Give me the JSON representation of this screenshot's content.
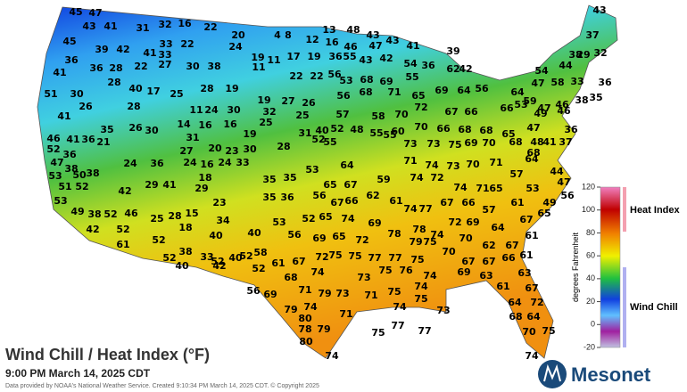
{
  "header": {
    "title": "Wind Chill / Heat Index (°F)",
    "subtitle": "9:00 PM March 14, 2025 CDT",
    "credit": "Data provided by NOAA's National Weather Service. Created 9:10:34 PM March 14, 2025 CDT. © Copyright 2025"
  },
  "legend": {
    "heat_label": "Heat Index",
    "chill_label": "Wind Chill",
    "unit_label": "degrees Fahrenheit",
    "ylim": [
      -20,
      120
    ],
    "yticks": [
      -20,
      0,
      20,
      40,
      60,
      80,
      100,
      120
    ]
  },
  "logo": "Mesonet",
  "stations": {
    "values": [
      45,
      47,
      43,
      41,
      31,
      32,
      16,
      22,
      43,
      20,
      4,
      8,
      13,
      48,
      43,
      37,
      45,
      33,
      22,
      24,
      12,
      16,
      46,
      47,
      43,
      41,
      39,
      36,
      39,
      42,
      41,
      19,
      11,
      17,
      19,
      38,
      44,
      29,
      32,
      36,
      28,
      22,
      33,
      27,
      30,
      38,
      11,
      22,
      22,
      36,
      55,
      43,
      42,
      54,
      36,
      62,
      42,
      54,
      41,
      28,
      40,
      17,
      25,
      28,
      19,
      19,
      27,
      26,
      56,
      53,
      68,
      69,
      55,
      64,
      56,
      64,
      47,
      58,
      33,
      36,
      51,
      30,
      26,
      28,
      11,
      24,
      30,
      56,
      68,
      71,
      65,
      69,
      59,
      47,
      46,
      38,
      35,
      41,
      35,
      26,
      30,
      14,
      16,
      16,
      32,
      25,
      25,
      57,
      58,
      70,
      72,
      67,
      66,
      66,
      53,
      49,
      46,
      46,
      41,
      36,
      19,
      31,
      40,
      52,
      48,
      55,
      60,
      70,
      66,
      68,
      68,
      65,
      47,
      48,
      41,
      37,
      36,
      52,
      47,
      36,
      38,
      21,
      31,
      27,
      20,
      23,
      30,
      28,
      52,
      55,
      55,
      73,
      73,
      75,
      69,
      70,
      68,
      68,
      53,
      50,
      38,
      24,
      36,
      24,
      16,
      24,
      33,
      53,
      64,
      71,
      74,
      73,
      70,
      71,
      64,
      44,
      51,
      52,
      18,
      29,
      35,
      35,
      65,
      67,
      59,
      74,
      72,
      74,
      71,
      65,
      57,
      53,
      47,
      53,
      42,
      29,
      41,
      35,
      36,
      23,
      56,
      67,
      66,
      62,
      61,
      74,
      77,
      67,
      66,
      57,
      61,
      49,
      56,
      49,
      38,
      52,
      46,
      25,
      28,
      15,
      34,
      53,
      52,
      65,
      74,
      69,
      78,
      78,
      74,
      72,
      69,
      64,
      67,
      65,
      42,
      52,
      18,
      40,
      40,
      56,
      69,
      65,
      72,
      79,
      75,
      70,
      62,
      67,
      61,
      61,
      52,
      38,
      52,
      40,
      52,
      58,
      61,
      67,
      72,
      75,
      75,
      77,
      77,
      75,
      70,
      67,
      67,
      66,
      61,
      52,
      40,
      33,
      42,
      52,
      74,
      73,
      75,
      76,
      74,
      69,
      63,
      63,
      56,
      69,
      68,
      71,
      79,
      73,
      71,
      75,
      74,
      61,
      67,
      79,
      74,
      74,
      73,
      64,
      72,
      80,
      71,
      75,
      68,
      64,
      78,
      79,
      75,
      77,
      77,
      70,
      75,
      80,
      74,
      74
    ]
  }
}
